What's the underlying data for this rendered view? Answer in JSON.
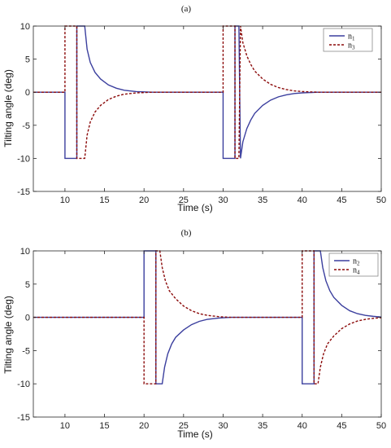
{
  "chart_data": [
    {
      "type": "line",
      "title": "(a)",
      "xlabel": "Time (s)",
      "ylabel": "Tilting angle (deg)",
      "xlim": [
        6,
        50
      ],
      "ylim": [
        -15,
        10
      ],
      "xticks": [
        10,
        15,
        20,
        25,
        30,
        35,
        40,
        45,
        50
      ],
      "yticks": [
        10,
        5,
        0,
        -5,
        -10,
        -15
      ],
      "grid": false,
      "legend_position": "top-right",
      "series": [
        {
          "name": "n1",
          "legend_main": "n",
          "legend_sub": "1",
          "color": "#3b3f9e",
          "style": "solid",
          "points": [
            [
              6,
              0
            ],
            [
              10,
              0
            ],
            [
              10,
              -10
            ],
            [
              11.5,
              -10
            ],
            [
              11.5,
              10
            ],
            [
              12.5,
              10
            ],
            [
              12.8,
              6.5
            ],
            [
              13.2,
              4.5
            ],
            [
              13.8,
              3
            ],
            [
              14.5,
              2
            ],
            [
              15.5,
              1.1
            ],
            [
              16.5,
              0.6
            ],
            [
              17.5,
              0.3
            ],
            [
              19,
              0.1
            ],
            [
              21,
              0
            ],
            [
              30,
              0
            ],
            [
              30,
              -10
            ],
            [
              31.5,
              -10
            ],
            [
              31.5,
              10
            ],
            [
              32,
              10
            ],
            [
              32.2,
              -10
            ],
            [
              32.5,
              -7.5
            ],
            [
              33,
              -5.5
            ],
            [
              33.5,
              -4.2
            ],
            [
              34,
              -3.2
            ],
            [
              35,
              -2
            ],
            [
              36,
              -1.2
            ],
            [
              37,
              -0.7
            ],
            [
              38,
              -0.4
            ],
            [
              39,
              -0.2
            ],
            [
              40,
              -0.1
            ],
            [
              42,
              0
            ],
            [
              50,
              0
            ]
          ]
        },
        {
          "name": "n3",
          "legend_main": "n",
          "legend_sub": "3",
          "color": "#8b0a0a",
          "style": "dashed",
          "points": [
            [
              6,
              0
            ],
            [
              10,
              0
            ],
            [
              10,
              10
            ],
            [
              11.5,
              10
            ],
            [
              11.5,
              -10
            ],
            [
              12.5,
              -10
            ],
            [
              12.8,
              -6.5
            ],
            [
              13.2,
              -4.5
            ],
            [
              13.8,
              -3
            ],
            [
              14.5,
              -2
            ],
            [
              15.5,
              -1.1
            ],
            [
              16.5,
              -0.6
            ],
            [
              17.5,
              -0.3
            ],
            [
              19,
              -0.1
            ],
            [
              21,
              0
            ],
            [
              30,
              0
            ],
            [
              30,
              10
            ],
            [
              31.5,
              10
            ],
            [
              31.5,
              -10
            ],
            [
              32,
              -10
            ],
            [
              32.2,
              10
            ],
            [
              32.5,
              7.5
            ],
            [
              33,
              5.5
            ],
            [
              33.5,
              4.2
            ],
            [
              34,
              3.2
            ],
            [
              35,
              2
            ],
            [
              36,
              1.2
            ],
            [
              37,
              0.7
            ],
            [
              38,
              0.4
            ],
            [
              39,
              0.2
            ],
            [
              40,
              0.1
            ],
            [
              42,
              0
            ],
            [
              50,
              0
            ]
          ]
        }
      ]
    },
    {
      "type": "line",
      "title": "(b)",
      "xlabel": "Time (s)",
      "ylabel": "Tilting angle (deg)",
      "xlim": [
        6,
        50
      ],
      "ylim": [
        -15,
        10
      ],
      "xticks": [
        10,
        15,
        20,
        25,
        30,
        35,
        40,
        45,
        50
      ],
      "yticks": [
        10,
        5,
        0,
        -5,
        -10,
        -15
      ],
      "grid": false,
      "legend_position": "top-right",
      "series": [
        {
          "name": "n2",
          "legend_main": "n",
          "legend_sub": "2",
          "color": "#3b3f9e",
          "style": "solid",
          "points": [
            [
              6,
              0
            ],
            [
              20,
              0
            ],
            [
              20,
              10
            ],
            [
              21.5,
              10
            ],
            [
              21.5,
              -10
            ],
            [
              22.3,
              -10
            ],
            [
              22.6,
              -7.5
            ],
            [
              23,
              -5.5
            ],
            [
              23.5,
              -4
            ],
            [
              24,
              -3
            ],
            [
              25,
              -1.9
            ],
            [
              26,
              -1.1
            ],
            [
              27,
              -0.6
            ],
            [
              28,
              -0.3
            ],
            [
              29.5,
              -0.1
            ],
            [
              31,
              0
            ],
            [
              40,
              0
            ],
            [
              40,
              -10
            ],
            [
              41.5,
              -10
            ],
            [
              41.5,
              10
            ],
            [
              42.3,
              10
            ],
            [
              42.6,
              7.5
            ],
            [
              43,
              5.5
            ],
            [
              43.5,
              4
            ],
            [
              44,
              3
            ],
            [
              45,
              1.8
            ],
            [
              46,
              1
            ],
            [
              47,
              0.55
            ],
            [
              48,
              0.3
            ],
            [
              49,
              0.15
            ],
            [
              50,
              0.05
            ]
          ]
        },
        {
          "name": "n4",
          "legend_main": "n",
          "legend_sub": "4",
          "color": "#8b0a0a",
          "style": "dashed",
          "points": [
            [
              6,
              0
            ],
            [
              20,
              0
            ],
            [
              20,
              -10
            ],
            [
              21.5,
              -10
            ],
            [
              21.5,
              10
            ],
            [
              22,
              10
            ],
            [
              22.3,
              7.5
            ],
            [
              22.7,
              5.5
            ],
            [
              23.2,
              4
            ],
            [
              24,
              2.8
            ],
            [
              25,
              1.7
            ],
            [
              26,
              1
            ],
            [
              27,
              0.55
            ],
            [
              28,
              0.3
            ],
            [
              29.5,
              0.1
            ],
            [
              31,
              0
            ],
            [
              40,
              0
            ],
            [
              40,
              10
            ],
            [
              41.5,
              10
            ],
            [
              41.5,
              -10
            ],
            [
              42,
              -10
            ],
            [
              42.3,
              -7.5
            ],
            [
              42.7,
              -5.5
            ],
            [
              43.2,
              -4
            ],
            [
              44,
              -2.8
            ],
            [
              45,
              -1.7
            ],
            [
              46,
              -1
            ],
            [
              47,
              -0.55
            ],
            [
              48,
              -0.3
            ],
            [
              49,
              -0.15
            ],
            [
              50,
              -0.05
            ]
          ]
        }
      ]
    }
  ]
}
